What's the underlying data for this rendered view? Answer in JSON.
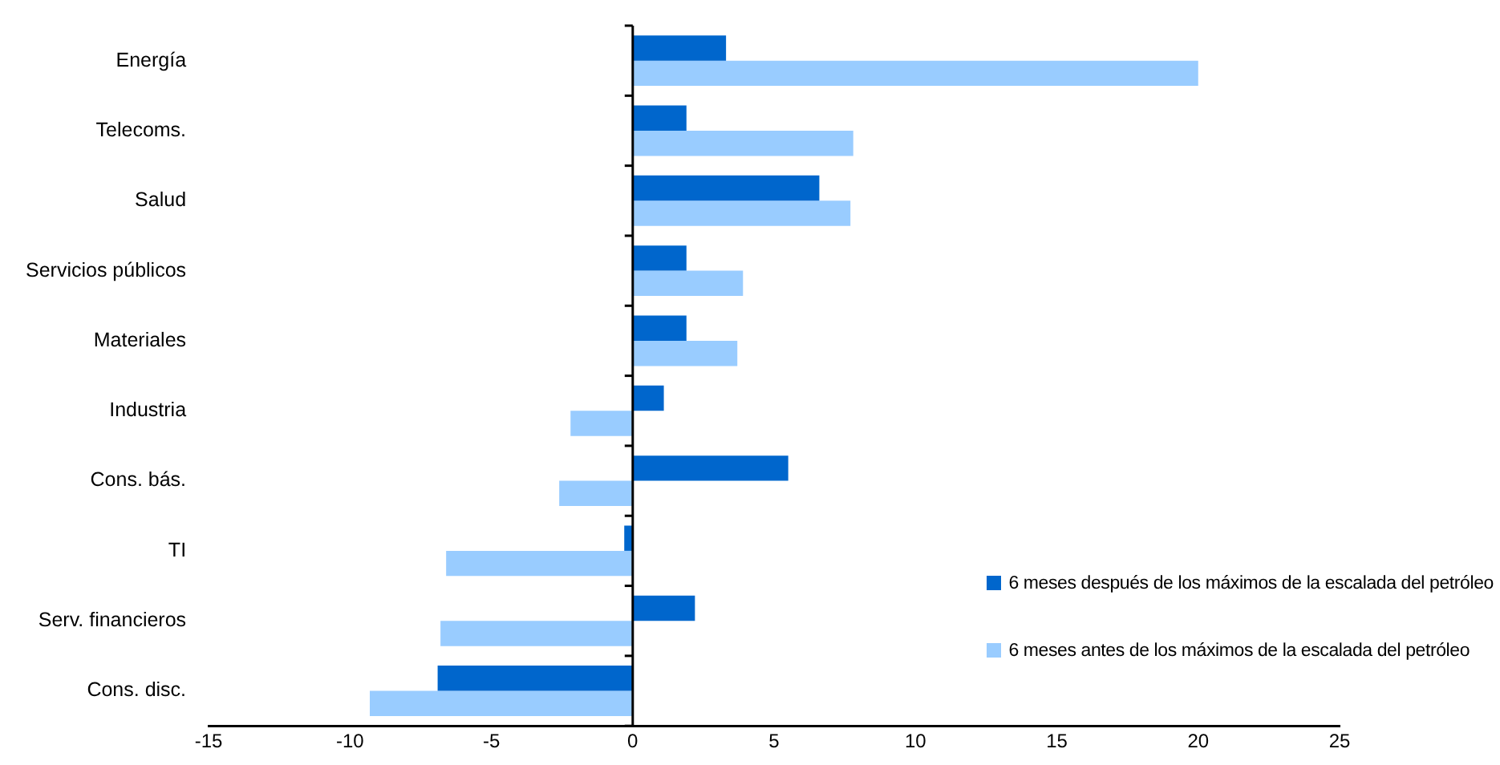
{
  "chart_data": {
    "type": "bar",
    "orientation": "horizontal",
    "categories": [
      "Energía",
      "Telecoms.",
      "Salud",
      "Servicios públicos",
      "Materiales",
      "Industria",
      "Cons. bás.",
      "TI",
      "Serv. financieros",
      "Cons. disc."
    ],
    "series": [
      {
        "name": "6 meses después de los máximos de la escalada del petróleo",
        "color": "#0066cc",
        "values": [
          3.3,
          1.9,
          6.6,
          1.9,
          1.9,
          1.1,
          5.5,
          -0.3,
          2.2,
          -6.9
        ]
      },
      {
        "name": "6 meses antes de los máximos de la escalada del petróleo",
        "color": "#99ccff",
        "values": [
          20.0,
          7.8,
          7.7,
          3.9,
          3.7,
          -2.2,
          -2.6,
          -6.6,
          -6.8,
          -9.3
        ]
      }
    ],
    "xlim": [
      -15,
      25
    ],
    "xticks": [
      -15,
      -10,
      -5,
      0,
      5,
      10,
      15,
      20,
      25
    ],
    "legend": "bottom right"
  }
}
